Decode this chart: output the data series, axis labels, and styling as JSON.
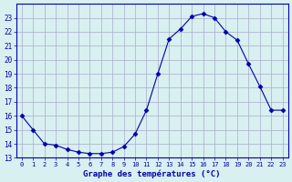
{
  "hours": [
    0,
    1,
    2,
    3,
    4,
    5,
    6,
    7,
    8,
    9,
    10,
    11,
    12,
    13,
    14,
    15,
    16,
    17,
    18,
    19,
    20,
    21,
    22,
    23
  ],
  "temps": [
    16.0,
    15.0,
    14.0,
    13.9,
    13.6,
    13.4,
    13.3,
    13.3,
    13.4,
    13.8,
    14.7,
    16.4,
    19.0,
    21.5,
    22.2,
    23.1,
    23.3,
    23.0,
    22.0,
    21.4,
    19.7,
    18.1,
    16.4,
    16.4
  ],
  "line_color": "#0000aa",
  "marker": "D",
  "marker_size": 2.5,
  "background_color": "#d8f0f0",
  "grid_color": "#aaaacc",
  "xlabel": "Graphe des températures (°C)",
  "xlabel_color": "#0000aa",
  "tick_color": "#0000aa",
  "ylim": [
    13,
    24
  ],
  "xlim": [
    -0.5,
    23.5
  ],
  "yticks": [
    13,
    14,
    15,
    16,
    17,
    18,
    19,
    20,
    21,
    22,
    23
  ],
  "xticks": [
    0,
    1,
    2,
    3,
    4,
    5,
    6,
    7,
    8,
    9,
    10,
    11,
    12,
    13,
    14,
    15,
    16,
    17,
    18,
    19,
    20,
    21,
    22,
    23
  ]
}
